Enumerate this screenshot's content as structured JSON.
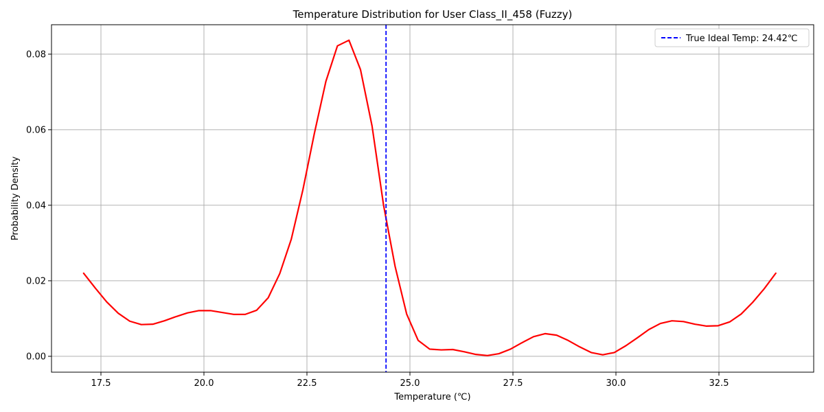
{
  "chart_data": {
    "type": "line",
    "title": "Temperature Distribution for User Class_II_458 (Fuzzy)",
    "xlabel": "Temperature (℃)",
    "ylabel": "Probability Density",
    "xlim": [
      16.3,
      34.8
    ],
    "ylim": [
      -0.0042,
      0.0878
    ],
    "xticks": [
      17.5,
      20.0,
      22.5,
      25.0,
      27.5,
      30.0,
      32.5
    ],
    "xtick_labels": [
      "17.5",
      "20.0",
      "22.5",
      "25.0",
      "27.5",
      "30.0",
      "32.5"
    ],
    "yticks": [
      0.0,
      0.02,
      0.04,
      0.06,
      0.08
    ],
    "ytick_labels": [
      "0.00",
      "0.02",
      "0.04",
      "0.06",
      "0.08"
    ],
    "grid": true,
    "legend_position": "top-right",
    "series": [
      {
        "color": "#ff0000",
        "x": [
          17.08,
          17.36,
          17.64,
          17.92,
          18.2,
          18.48,
          18.76,
          19.04,
          19.32,
          19.6,
          19.88,
          20.16,
          20.44,
          20.72,
          21.0,
          21.28,
          21.56,
          21.84,
          22.12,
          22.4,
          22.68,
          22.96,
          23.24,
          23.52,
          23.8,
          24.08,
          24.36,
          24.64,
          24.92,
          25.2,
          25.48,
          25.76,
          26.04,
          26.32,
          26.6,
          26.88,
          27.16,
          27.44,
          27.72,
          28.0,
          28.28,
          28.56,
          28.84,
          29.12,
          29.4,
          29.68,
          29.96,
          30.24,
          30.52,
          30.8,
          31.08,
          31.36,
          31.64,
          31.92,
          32.2,
          32.48,
          32.76,
          33.04,
          33.32,
          33.6,
          33.88
        ],
        "y": [
          0.022,
          0.0181,
          0.0144,
          0.0114,
          0.0093,
          0.0084,
          0.0085,
          0.0094,
          0.0105,
          0.0115,
          0.0121,
          0.0121,
          0.0116,
          0.0111,
          0.0111,
          0.0122,
          0.0155,
          0.0219,
          0.031,
          0.044,
          0.059,
          0.0728,
          0.0822,
          0.0837,
          0.0759,
          0.061,
          0.04,
          0.0238,
          0.0112,
          0.0042,
          0.0019,
          0.0017,
          0.0018,
          0.0012,
          0.0005,
          0.0002,
          0.0007,
          0.0019,
          0.0036,
          0.0052,
          0.006,
          0.0056,
          0.0042,
          0.0025,
          0.001,
          0.0004,
          0.001,
          0.0028,
          0.0049,
          0.0071,
          0.0087,
          0.0094,
          0.0092,
          0.0085,
          0.008,
          0.0081,
          0.0091,
          0.0112,
          0.0143,
          0.0179,
          0.022
        ]
      }
    ],
    "vline": {
      "x": 24.42,
      "color": "#0000ff",
      "label": "True Ideal Temp: 24.42℃"
    }
  }
}
